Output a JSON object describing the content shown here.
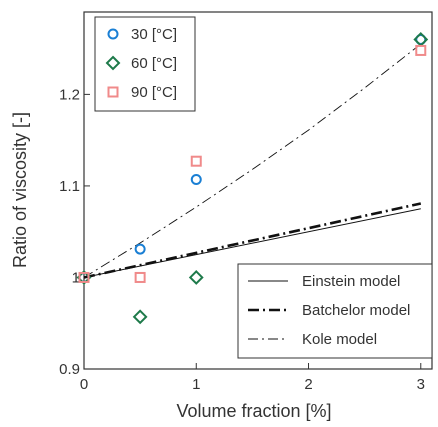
{
  "chart_data": {
    "type": "scatter",
    "xlabel": "Volume fraction [%]",
    "ylabel": "Ratio of viscosity [-]",
    "xlim": [
      0,
      3.1
    ],
    "ylim": [
      0.9,
      1.29
    ],
    "xticks": [
      0,
      1,
      2,
      3
    ],
    "yticks": [
      0.9,
      1.0,
      1.1,
      1.2
    ],
    "ytick_labels": [
      "0.9",
      "1",
      "1.1",
      "1.2"
    ],
    "grid": false,
    "series": [
      {
        "name": "30 [°C]",
        "marker": "circle",
        "color": "#1a7fd4",
        "x": [
          0,
          0.5,
          1,
          3
        ],
        "y": [
          1.0,
          1.031,
          1.107,
          1.26
        ]
      },
      {
        "name": "60 [°C]",
        "marker": "diamond",
        "color": "#1e7a4a",
        "x": [
          0,
          0.5,
          1,
          3
        ],
        "y": [
          1.0,
          0.957,
          1.0,
          1.26
        ]
      },
      {
        "name": "90 [°C]",
        "marker": "square",
        "color": "#f08a8a",
        "x": [
          0,
          0.5,
          1,
          3
        ],
        "y": [
          1.0,
          1.0,
          1.127,
          1.248
        ]
      }
    ],
    "lines": [
      {
        "name": "Einstein model",
        "style": "solid",
        "x": [
          0,
          3
        ],
        "y": [
          1.0,
          1.075
        ]
      },
      {
        "name": "Batchelor model",
        "style": "dashdot-thick",
        "x": [
          0,
          3
        ],
        "y": [
          1.0,
          1.0808
        ]
      },
      {
        "name": "Kole model",
        "style": "dashdot-thin",
        "x": [
          0,
          0.5,
          1,
          1.5,
          2,
          2.5,
          3
        ],
        "y": [
          1.0,
          1.0376,
          1.077,
          1.118,
          1.161,
          1.207,
          1.255
        ]
      }
    ],
    "legend_markers_position": "top-left",
    "legend_lines_position": "bottom-right"
  }
}
